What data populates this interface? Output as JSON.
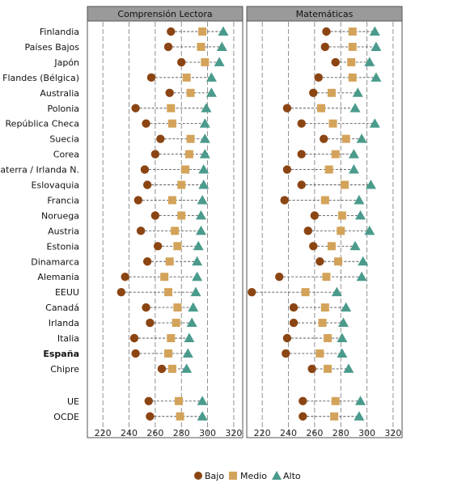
{
  "chart_data": {
    "type": "scatter",
    "panels": [
      "Comprensión Lectora",
      "Matemáticas"
    ],
    "xlim": [
      210,
      325
    ],
    "xticks": [
      220,
      240,
      260,
      280,
      300,
      320
    ],
    "grid": true,
    "legend_position": "bottom",
    "legend": [
      "Bajo",
      "Medio",
      "Alto"
    ],
    "series_colors": {
      "Bajo": "#8B4513",
      "Medio": "#D4A35A",
      "Alto": "#4A9B8C"
    },
    "countries": [
      "Finlandia",
      "Países Bajos",
      "Japón",
      "Flandes (Bélgica)",
      "Australia",
      "Polonia",
      "República Checa",
      "Suecia",
      "Corea",
      "Inglaterra / Irlanda N.",
      "Eslovaquia",
      "Francia",
      "Noruega",
      "Austria",
      "Estonia",
      "Dinamarca",
      "Alemania",
      "EEUU",
      "Canadá",
      "Irlanda",
      "Italia",
      "España",
      "Chipre",
      "UE",
      "OCDE"
    ],
    "bold_countries": [
      "España"
    ],
    "reading": {
      "Bajo": [
        272,
        270,
        280,
        257,
        271,
        245,
        253,
        264,
        260,
        252,
        254,
        247,
        260,
        249,
        262,
        254,
        237,
        234,
        253,
        256,
        244,
        245,
        265,
        255,
        256
      ],
      "Medio": [
        296,
        295,
        298,
        284,
        287,
        272,
        273,
        287,
        286,
        283,
        280,
        273,
        280,
        275,
        277,
        271,
        267,
        270,
        277,
        276,
        272,
        270,
        273,
        278,
        279
      ],
      "Alto": [
        312,
        311,
        309,
        303,
        303,
        299,
        298,
        298,
        298,
        297,
        297,
        296,
        295,
        295,
        293,
        292,
        292,
        291,
        289,
        288,
        286,
        285,
        284,
        296,
        296
      ]
    },
    "math": {
      "Bajo": [
        269,
        268,
        276,
        263,
        259,
        239,
        250,
        267,
        250,
        239,
        250,
        237,
        260,
        255,
        259,
        264,
        233,
        212,
        244,
        244,
        239,
        238,
        258,
        251,
        251
      ],
      "Medio": [
        289,
        289,
        288,
        289,
        273,
        265,
        274,
        284,
        276,
        271,
        283,
        268,
        281,
        280,
        273,
        278,
        269,
        253,
        268,
        266,
        270,
        264,
        270,
        276,
        275
      ],
      "Alto": [
        306,
        307,
        302,
        307,
        293,
        291,
        306,
        296,
        290,
        290,
        303,
        294,
        295,
        302,
        291,
        297,
        296,
        277,
        284,
        282,
        281,
        281,
        286,
        295,
        294
      ]
    }
  }
}
